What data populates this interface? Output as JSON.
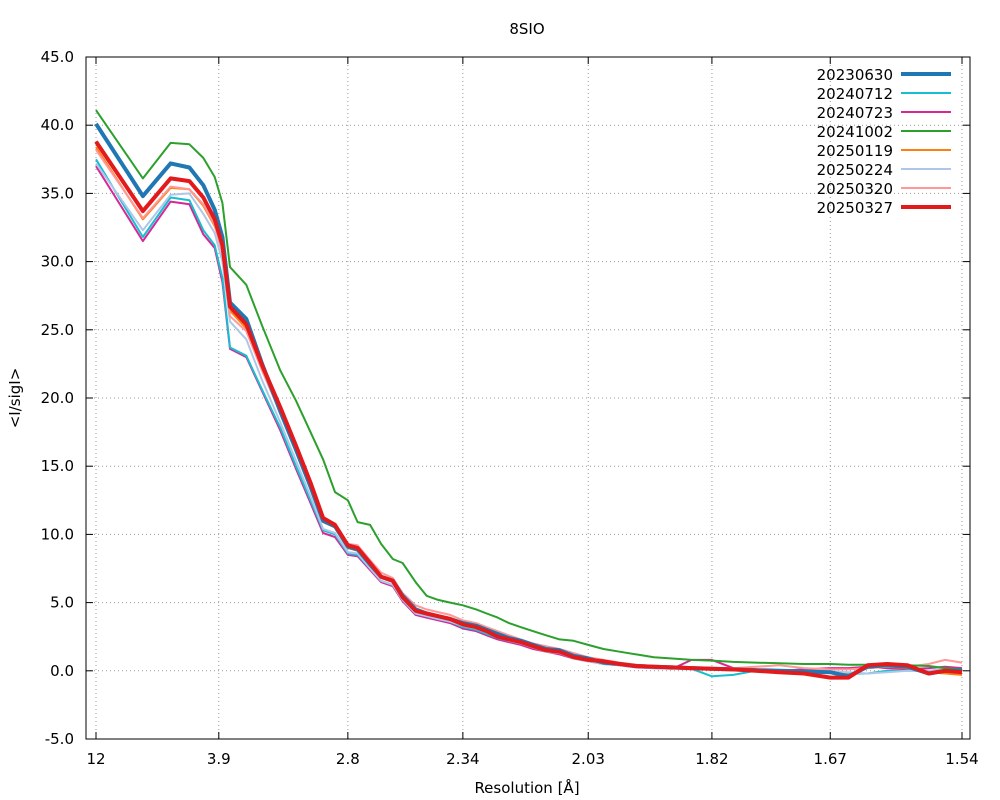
{
  "chart_data": {
    "type": "line",
    "title": "8SIO",
    "xlabel": "Resolution [Å]",
    "ylabel": "<I/sigI>",
    "x_scale": "1/d^2",
    "xlim_d": [
      12,
      1.54
    ],
    "ylim": [
      -5.0,
      45.0
    ],
    "grid": true,
    "legend_position": "top-right",
    "x_ticks": [
      {
        "d": 12,
        "label": "12"
      },
      {
        "d": 3.9,
        "label": "3.9"
      },
      {
        "d": 2.8,
        "label": "2.8"
      },
      {
        "d": 2.34,
        "label": "2.34"
      },
      {
        "d": 2.03,
        "label": "2.03"
      },
      {
        "d": 1.82,
        "label": "1.82"
      },
      {
        "d": 1.67,
        "label": "1.67"
      },
      {
        "d": 1.54,
        "label": "1.54"
      }
    ],
    "y_ticks": [
      {
        "value": -5.0,
        "label": "-5.0"
      },
      {
        "value": 0.0,
        "label": "0.0"
      },
      {
        "value": 5.0,
        "label": "5.0"
      },
      {
        "value": 10.0,
        "label": "10.0"
      },
      {
        "value": 15.0,
        "label": "15.0"
      },
      {
        "value": 20.0,
        "label": "20.0"
      },
      {
        "value": 25.0,
        "label": "25.0"
      },
      {
        "value": 30.0,
        "label": "30.0"
      },
      {
        "value": 35.0,
        "label": "35.0"
      },
      {
        "value": 40.0,
        "label": "40.0"
      },
      {
        "value": 45.0,
        "label": "45.0"
      }
    ],
    "d": [
      12,
      5.83,
      4.84,
      4.4,
      4.14,
      3.96,
      3.85,
      3.75,
      3.56,
      3.4,
      3.24,
      3.12,
      3.02,
      2.94,
      2.87,
      2.8,
      2.75,
      2.69,
      2.64,
      2.59,
      2.55,
      2.5,
      2.46,
      2.42,
      2.38,
      2.34,
      2.3,
      2.27,
      2.24,
      2.21,
      2.18,
      2.15,
      2.12,
      2.09,
      2.06,
      2.03,
      2.0,
      1.97,
      1.94,
      1.91,
      1.88,
      1.85,
      1.82,
      1.79,
      1.76,
      1.73,
      1.7,
      1.67,
      1.65,
      1.63,
      1.61,
      1.59,
      1.57,
      1.555,
      1.54
    ],
    "series": [
      {
        "name": "20230630",
        "color": "#1f77b4",
        "bold": true,
        "values": [
          40.1,
          34.8,
          37.2,
          36.9,
          35.6,
          33.8,
          31.8,
          27.0,
          25.8,
          22.5,
          19.0,
          16.2,
          13.5,
          11.0,
          10.6,
          9.1,
          8.9,
          7.8,
          6.9,
          6.6,
          5.5,
          4.5,
          4.2,
          4.0,
          3.8,
          3.5,
          3.3,
          3.0,
          2.7,
          2.4,
          2.2,
          1.9,
          1.6,
          1.5,
          1.1,
          0.9,
          0.6,
          0.5,
          0.35,
          0.3,
          0.25,
          0.2,
          0.15,
          0.1,
          0.05,
          0.0,
          -0.05,
          -0.1,
          -0.4,
          0.3,
          0.4,
          0.3,
          -0.2,
          0.0,
          0.0
        ]
      },
      {
        "name": "20240712",
        "color": "#17becf",
        "bold": false,
        "values": [
          37.5,
          31.8,
          34.7,
          34.5,
          32.3,
          31.2,
          28.8,
          23.7,
          23.1,
          20.6,
          17.8,
          15.0,
          12.5,
          10.3,
          10.0,
          8.6,
          8.5,
          7.5,
          6.6,
          6.3,
          5.2,
          4.2,
          4.0,
          3.8,
          3.6,
          3.2,
          3.0,
          2.7,
          2.4,
          2.2,
          2.0,
          1.7,
          1.5,
          1.3,
          1.0,
          0.8,
          0.55,
          0.45,
          0.3,
          0.25,
          0.2,
          0.15,
          -0.4,
          -0.3,
          0.0,
          -0.1,
          -0.05,
          -0.1,
          -0.2,
          -0.2,
          0.0,
          0.0,
          0.0,
          0.1,
          0.0
        ]
      },
      {
        "name": "20240723",
        "color": "#d62796",
        "bold": false,
        "values": [
          37.0,
          31.5,
          34.4,
          34.2,
          32.0,
          31.0,
          28.5,
          23.6,
          23.0,
          20.5,
          17.6,
          14.8,
          12.3,
          10.1,
          9.8,
          8.5,
          8.4,
          7.4,
          6.5,
          6.2,
          5.1,
          4.1,
          3.9,
          3.7,
          3.5,
          3.1,
          2.9,
          2.6,
          2.3,
          2.1,
          1.9,
          1.6,
          1.4,
          1.2,
          0.9,
          0.7,
          0.5,
          0.4,
          0.25,
          0.2,
          0.15,
          0.8,
          0.8,
          0.2,
          0.1,
          0.0,
          0.1,
          0.2,
          0.2,
          0.3,
          0.2,
          0.1,
          0.2,
          0.3,
          0.2
        ]
      },
      {
        "name": "20241002",
        "color": "#2ca02c",
        "bold": false,
        "values": [
          41.1,
          36.1,
          38.7,
          38.6,
          37.6,
          36.2,
          34.3,
          29.6,
          28.3,
          25.3,
          22.0,
          19.8,
          17.5,
          15.5,
          13.1,
          12.5,
          10.9,
          10.7,
          9.3,
          8.2,
          7.9,
          6.5,
          5.5,
          5.2,
          5.0,
          4.8,
          4.5,
          4.2,
          3.9,
          3.5,
          3.2,
          2.9,
          2.6,
          2.3,
          2.2,
          1.9,
          1.6,
          1.4,
          1.2,
          1.0,
          0.9,
          0.8,
          0.75,
          0.65,
          0.6,
          0.55,
          0.5,
          0.5,
          0.45,
          0.45,
          0.4,
          0.4,
          0.35,
          0.2,
          0.1
        ]
      },
      {
        "name": "20250119",
        "color": "#ff7f0e",
        "bold": false,
        "values": [
          38.4,
          33.1,
          35.4,
          35.3,
          34.1,
          32.6,
          30.9,
          26.4,
          25.1,
          22.1,
          18.9,
          16.1,
          13.4,
          10.9,
          10.5,
          9.0,
          8.8,
          7.7,
          6.8,
          6.5,
          5.4,
          4.4,
          4.1,
          3.9,
          3.7,
          3.4,
          3.2,
          2.9,
          2.6,
          2.3,
          2.1,
          1.8,
          1.5,
          1.4,
          1.0,
          0.8,
          0.55,
          0.45,
          0.3,
          0.25,
          0.2,
          0.15,
          0.1,
          0.05,
          0.0,
          0.0,
          -0.05,
          -0.1,
          -0.3,
          0.2,
          0.3,
          0.2,
          -0.1,
          -0.2,
          -0.3
        ]
      },
      {
        "name": "20250224",
        "color": "#aec7e8",
        "bold": false,
        "values": [
          37.2,
          32.3,
          34.9,
          35.0,
          33.5,
          32.1,
          30.0,
          25.6,
          24.3,
          21.3,
          18.2,
          15.4,
          12.8,
          10.4,
          10.1,
          8.7,
          8.6,
          7.5,
          6.6,
          6.3,
          5.2,
          4.2,
          4.0,
          3.8,
          3.6,
          3.3,
          3.1,
          2.8,
          2.5,
          2.2,
          2.0,
          1.7,
          1.4,
          1.3,
          0.9,
          0.7,
          0.5,
          0.4,
          0.3,
          0.2,
          0.15,
          0.1,
          0.1,
          0.05,
          0.0,
          0.0,
          0.0,
          -0.05,
          -0.1,
          -0.2,
          -0.1,
          0.0,
          0.0,
          0.1,
          0.0
        ]
      },
      {
        "name": "20250320",
        "color": "#ff9896",
        "bold": false,
        "values": [
          38.2,
          33.2,
          35.5,
          35.3,
          34.2,
          32.7,
          30.6,
          26.0,
          24.9,
          22.0,
          18.9,
          16.2,
          13.6,
          11.2,
          10.8,
          9.3,
          9.2,
          8.1,
          7.2,
          6.8,
          5.7,
          4.8,
          4.5,
          4.3,
          4.1,
          3.7,
          3.5,
          3.2,
          2.9,
          2.6,
          2.3,
          2.0,
          1.8,
          1.6,
          1.3,
          1.0,
          0.8,
          0.6,
          0.45,
          0.35,
          0.3,
          0.25,
          0.2,
          0.2,
          0.3,
          0.4,
          0.2,
          0.1,
          0.1,
          0.2,
          0.3,
          0.3,
          0.5,
          0.8,
          0.6
        ]
      },
      {
        "name": "20250327",
        "color": "#e31a1c",
        "bold": true,
        "values": [
          38.8,
          33.7,
          36.1,
          35.9,
          34.7,
          33.1,
          31.2,
          26.7,
          25.4,
          22.4,
          19.3,
          16.5,
          13.8,
          11.2,
          10.7,
          9.2,
          9.0,
          7.9,
          6.9,
          6.6,
          5.4,
          4.4,
          4.2,
          4.0,
          3.8,
          3.4,
          3.2,
          2.9,
          2.5,
          2.3,
          2.1,
          1.8,
          1.5,
          1.4,
          1.0,
          0.8,
          0.7,
          0.5,
          0.35,
          0.3,
          0.25,
          0.2,
          0.15,
          0.1,
          0.0,
          -0.1,
          -0.2,
          -0.5,
          -0.5,
          0.4,
          0.5,
          0.4,
          -0.2,
          0.0,
          -0.1
        ]
      }
    ]
  }
}
